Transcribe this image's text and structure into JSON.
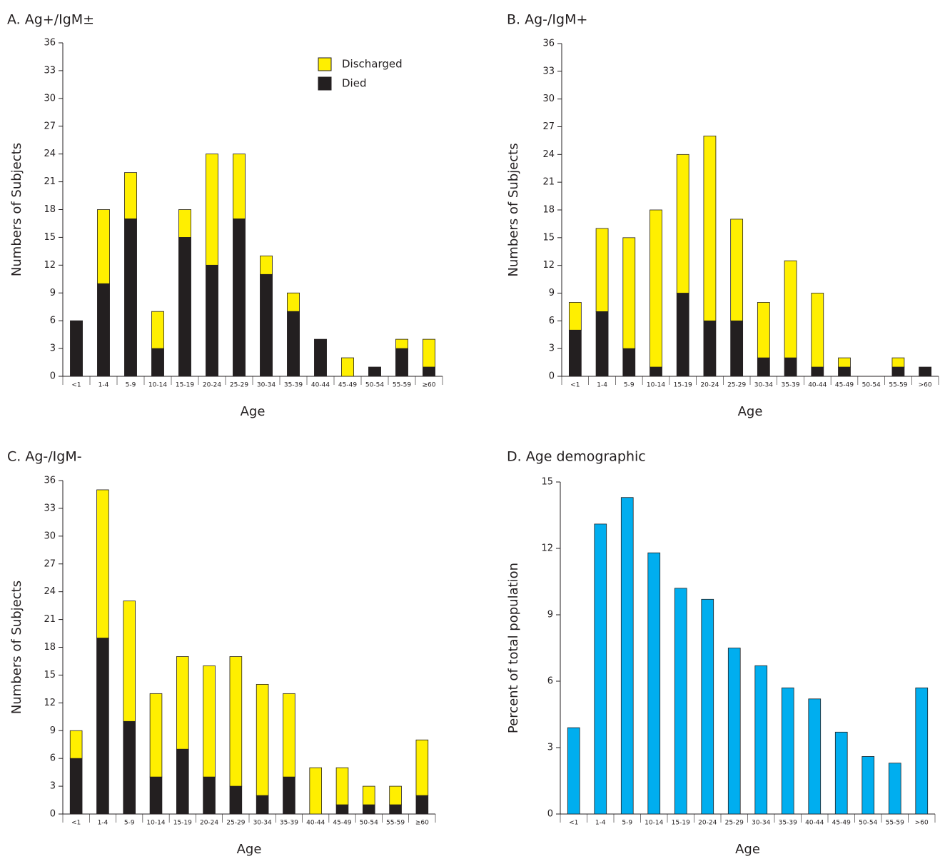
{
  "chart_data": [
    {
      "type": "stacked_bar",
      "title": "A. Ag+/IgM±",
      "x_label": "Age",
      "y_label": "Numbers of Subjects",
      "categories": [
        "<1",
        "1-4",
        "5-9",
        "10-14",
        "15-19",
        "20-24",
        "25-29",
        "30-34",
        "35-39",
        "40-44",
        "45-49",
        "50-54",
        "55-59",
        "≥60"
      ],
      "series": [
        {
          "name": "Discharged",
          "color": "#ffef00",
          "values": [
            0,
            8,
            5,
            4,
            3,
            12,
            7,
            2,
            2,
            0,
            2,
            0,
            1,
            3
          ]
        },
        {
          "name": "Died",
          "color": "#231f20",
          "values": [
            6,
            10,
            17,
            3,
            15,
            12,
            17,
            11,
            7,
            4,
            0,
            1,
            3,
            1
          ]
        }
      ],
      "ylim": [
        0,
        36
      ],
      "yticks": [
        0,
        3,
        6,
        9,
        12,
        15,
        18,
        21,
        24,
        27,
        30,
        33,
        36
      ],
      "legend": "upper right"
    },
    {
      "type": "stacked_bar",
      "title": "B. Ag-/IgM+",
      "x_label": "Age",
      "y_label": "Numbers of Subjects",
      "categories": [
        "<1",
        "1-4",
        "5-9",
        "10-14",
        "15-19",
        "20-24",
        "25-29",
        "30-34",
        "35-39",
        "40-44",
        "45-49",
        "50-54",
        "55-59",
        ">60"
      ],
      "series": [
        {
          "color": "#ffef00",
          "values": [
            3,
            9,
            12,
            17,
            15,
            20,
            11,
            6,
            10.5,
            8,
            1,
            0,
            1,
            0
          ]
        },
        {
          "color": "#231f20",
          "values": [
            5,
            7,
            3,
            1,
            9,
            6,
            6,
            2,
            2,
            1,
            1,
            0,
            1,
            1
          ]
        }
      ],
      "ylim": [
        0,
        36
      ],
      "yticks": [
        0,
        3,
        6,
        9,
        12,
        15,
        18,
        21,
        24,
        27,
        30,
        33,
        36
      ]
    },
    {
      "type": "stacked_bar",
      "title": "C. Ag-/IgM-",
      "x_label": "Age",
      "y_label": "Numbers of Subjects",
      "categories": [
        "<1",
        "1-4",
        "5-9",
        "10-14",
        "15-19",
        "20-24",
        "25-29",
        "30-34",
        "35-39",
        "40-44",
        "45-49",
        "50-54",
        "55-59",
        "≥60"
      ],
      "series": [
        {
          "color": "#ffef00",
          "values": [
            3,
            16,
            13,
            9,
            10,
            12,
            14,
            12,
            9,
            5,
            4,
            2,
            2,
            6
          ]
        },
        {
          "color": "#231f20",
          "values": [
            6,
            19,
            10,
            4,
            7,
            4,
            3,
            2,
            4,
            0,
            1,
            1,
            1,
            2
          ]
        }
      ],
      "ylim": [
        0,
        36
      ],
      "yticks": [
        0,
        3,
        6,
        9,
        12,
        15,
        18,
        21,
        24,
        27,
        30,
        33,
        36
      ]
    },
    {
      "type": "bar",
      "title": "D. Age demographic",
      "x_label": "Age",
      "y_label": "Percent of total population",
      "categories": [
        "<1",
        "1-4",
        "5-9",
        "10-14",
        "15-19",
        "20-24",
        "25-29",
        "30-34",
        "35-39",
        "40-44",
        "45-49",
        "50-54",
        "55-59",
        ">60"
      ],
      "values": [
        3.9,
        13.1,
        14.3,
        11.8,
        10.2,
        9.7,
        7.5,
        6.7,
        5.7,
        5.2,
        3.7,
        2.6,
        2.3,
        5.7
      ],
      "color": "#00aeef",
      "ylim": [
        0,
        15
      ],
      "yticks": [
        0,
        3,
        6,
        9,
        12,
        15
      ]
    }
  ]
}
